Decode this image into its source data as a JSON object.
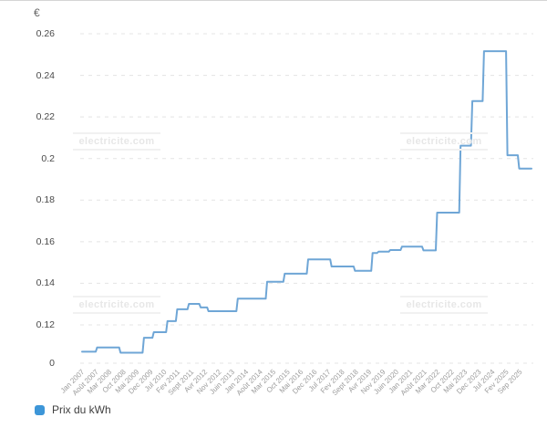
{
  "chart": {
    "y_axis_title": "€",
    "legend": {
      "label": "Prix du kWh",
      "swatch_color": "#3d96d8"
    },
    "watermark": {
      "text": "electricite.com"
    },
    "colors": {
      "line": "#6fa6d6",
      "grid": "#e4e4e4",
      "y_tick_text": "#4a4a4a",
      "x_tick_text": "#9b9b9b"
    }
  },
  "chart_data": {
    "type": "line",
    "subtype": "step",
    "title": "",
    "xlabel": "",
    "ylabel": "€",
    "unit": "€/kWh",
    "grid": "dashed-horizontal",
    "legend_position": "bottom-left",
    "legend_entries": [
      "Prix du kWh"
    ],
    "y_tick_labels": [
      "0.26",
      "0.24",
      "0.22",
      "0.2",
      "0.18",
      "0.16",
      "0.14",
      "0.12",
      "0"
    ],
    "y_axis_layout_note": "scale compressed below 0.12: baseline tick is labeled 0 but sits at ~0.10",
    "x_tick_labels": [
      "Jan 2007",
      "Août 2007",
      "Mar 2008",
      "Oct 2008",
      "Mai 2009",
      "Dec 2009",
      "Jul 2010",
      "Fev 2011",
      "Sept 2011",
      "Avr 2012",
      "Nov 2012",
      "Juin 2013",
      "Jan 2014",
      "Août 2014",
      "Mar 2015",
      "Oct 2015",
      "Mai 2016",
      "Dec 2016",
      "Jul 2017",
      "Fev 2018",
      "Sept 2018",
      "Avr 2019",
      "Nov 2019",
      "Juin 2020",
      "Jan 2021",
      "Août 2021",
      "Mar 2022",
      "Oct 2022",
      "Mai 2023",
      "Dec 2023",
      "Jul 2024",
      "Fev 2025",
      "Sep 2025"
    ],
    "x_tick_step_months": 7,
    "x_domain_months": [
      0,
      230
    ],
    "series": [
      {
        "name": "Prix du kWh",
        "unit": "€/kWh",
        "breakpoints": [
          {
            "date": "Jan 2007",
            "month_index": 0,
            "value": 0.106
          },
          {
            "date": "Août 2007",
            "month_index": 7,
            "value": 0.1082
          },
          {
            "date": "Août 2008",
            "month_index": 19,
            "value": 0.1055
          },
          {
            "date": "Août 2009",
            "month_index": 31,
            "value": 0.1133
          },
          {
            "date": "Jan 2010",
            "month_index": 36,
            "value": 0.1162
          },
          {
            "date": "Août 2010",
            "month_index": 43,
            "value": 0.1218
          },
          {
            "date": "Jan 2011",
            "month_index": 48,
            "value": 0.1275
          },
          {
            "date": "Juil 2011",
            "month_index": 54,
            "value": 0.1301
          },
          {
            "date": "Jan 2012",
            "month_index": 60,
            "value": 0.1284
          },
          {
            "date": "Mai 2012",
            "month_index": 64,
            "value": 0.1266
          },
          {
            "date": "Août 2013",
            "month_index": 79,
            "value": 0.1326
          },
          {
            "date": "Nov 2014",
            "month_index": 94,
            "value": 0.1407
          },
          {
            "date": "Août 2015",
            "month_index": 103,
            "value": 0.1446
          },
          {
            "date": "Août 2016",
            "month_index": 115,
            "value": 0.1515
          },
          {
            "date": "Août 2017",
            "month_index": 127,
            "value": 0.1481
          },
          {
            "date": "Août 2018",
            "month_index": 139,
            "value": 0.146
          },
          {
            "date": "Juin 2019",
            "month_index": 148,
            "value": 0.1546
          },
          {
            "date": "Sept 2019",
            "month_index": 151,
            "value": 0.1552
          },
          {
            "date": "Fev 2020",
            "month_index": 157,
            "value": 0.156
          },
          {
            "date": "Août 2020",
            "month_index": 163,
            "value": 0.1576
          },
          {
            "date": "Juil 2021",
            "month_index": 174,
            "value": 0.1558
          },
          {
            "date": "Fev 2022",
            "month_index": 181,
            "value": 0.174
          },
          {
            "date": "Fev 2023",
            "month_index": 193,
            "value": 0.2062
          },
          {
            "date": "Août 2023",
            "month_index": 199,
            "value": 0.2276
          },
          {
            "date": "Fev 2024",
            "month_index": 205,
            "value": 0.2516
          },
          {
            "date": "Fev 2025",
            "month_index": 217,
            "value": 0.2016
          },
          {
            "date": "Août 2025",
            "month_index": 223,
            "value": 0.1952
          }
        ]
      }
    ]
  }
}
